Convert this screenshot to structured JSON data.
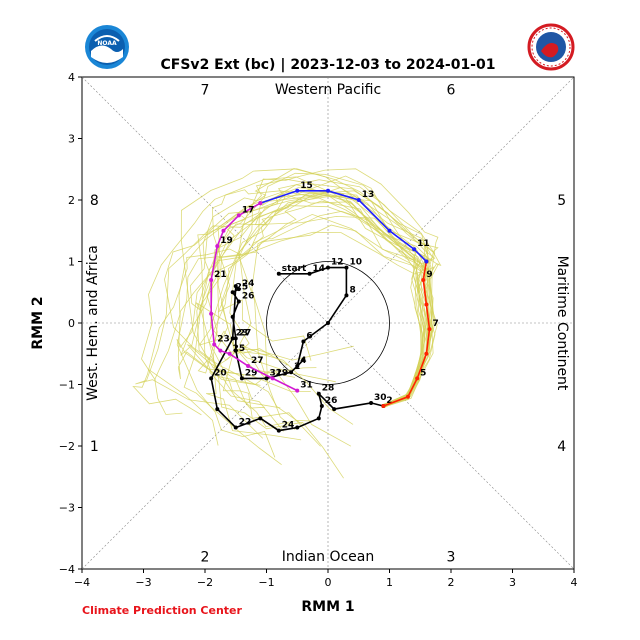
{
  "header": {
    "title": "CFSv2 Ext (bc) | 2023-12-03 to 2024-01-01",
    "left_logo": "noaa-logo",
    "right_logo": "national-weather-service-logo"
  },
  "footer": {
    "credit": "Climate Prediction Center"
  },
  "chart_data": {
    "type": "line",
    "title": "CFSv2 Ext (bc) | 2023-12-03 to 2024-01-01",
    "xlabel": "RMM 1",
    "ylabel": "RMM 2",
    "xlim": [
      -4,
      4
    ],
    "ylim": [
      -4,
      4
    ],
    "xticks": [
      -4,
      -3,
      -2,
      -1,
      0,
      1,
      2,
      3,
      4
    ],
    "yticks": [
      -4,
      -3,
      -2,
      -1,
      0,
      1,
      2,
      3,
      4
    ],
    "region_labels": {
      "top": "Western Pacific",
      "bottom": "Indian Ocean",
      "left": "West. Hem. and Africa",
      "right": "Maritime Continent"
    },
    "phase_labels": [
      {
        "phase": "1",
        "x": -3.8,
        "y": -2.0
      },
      {
        "phase": "2",
        "x": -2.0,
        "y": -3.8
      },
      {
        "phase": "3",
        "x": 2.0,
        "y": -3.8
      },
      {
        "phase": "4",
        "x": 3.8,
        "y": -2.0
      },
      {
        "phase": "5",
        "x": 3.8,
        "y": 2.0
      },
      {
        "phase": "6",
        "x": 2.0,
        "y": 3.8
      },
      {
        "phase": "7",
        "x": -2.0,
        "y": 3.8
      },
      {
        "phase": "8",
        "x": -3.8,
        "y": 2.0
      }
    ],
    "unit_circle_radius": 1,
    "colors": {
      "observed": "#000000",
      "ensemble": "#d4d25a",
      "forecast_week1": "#ff2200",
      "forecast_week2": "#1f1fff",
      "forecast_week3": "#d21ad2",
      "credit": "#e8141b"
    },
    "series": [
      {
        "role": "observed",
        "x": [
          -0.8,
          -0.3,
          0.0,
          0.3,
          0.3,
          0.0,
          -0.4,
          -0.5,
          -0.4,
          -0.6,
          -1.0,
          -1.4,
          -1.5,
          -1.5,
          -1.55,
          -1.45,
          -1.55,
          -1.45,
          -1.5,
          -1.55,
          -1.9,
          -1.8,
          -1.5,
          -1.1,
          -0.8,
          -0.5,
          -0.15,
          -0.1,
          -0.15,
          0.1,
          0.7,
          0.9
        ],
        "y": [
          0.8,
          0.8,
          0.9,
          0.9,
          0.45,
          0.0,
          -0.3,
          -0.7,
          -0.6,
          -0.8,
          -0.9,
          -0.9,
          -0.45,
          -0.25,
          0.1,
          0.35,
          0.5,
          0.55,
          0.6,
          -0.25,
          -0.9,
          -1.4,
          -1.7,
          -1.55,
          -1.75,
          -1.7,
          -1.55,
          -1.35,
          -1.15,
          -1.4,
          -1.3,
          -1.35
        ],
        "labels": [
          {
            "text": "start",
            "index": 0
          },
          {
            "text": "14",
            "index": 1
          },
          {
            "text": "12",
            "index": 2
          },
          {
            "text": "10",
            "index": 3
          },
          {
            "text": "8",
            "index": 4
          },
          {
            "text": "6",
            "index": 6
          },
          {
            "text": "4",
            "index": 7
          },
          {
            "text": "2",
            "index": 9
          },
          {
            "text": "31",
            "index": 10
          },
          {
            "text": "29",
            "index": 11
          },
          {
            "text": "27",
            "index": 13
          },
          {
            "text": "26",
            "index": 15
          },
          {
            "text": "25",
            "index": 16
          },
          {
            "text": "24",
            "index": 17
          },
          {
            "text": "23",
            "index": 19
          },
          {
            "text": "20",
            "index": 20
          },
          {
            "text": "22",
            "index": 22
          },
          {
            "text": "24",
            "index": 24
          },
          {
            "text": "26",
            "index": 27
          },
          {
            "text": "28",
            "index": 28
          },
          {
            "text": "30",
            "index": 30
          },
          {
            "text": "2",
            "index": 31
          }
        ]
      },
      {
        "role": "forecast_week1",
        "x": [
          0.9,
          1.3,
          1.45,
          1.6,
          1.65,
          1.6,
          1.55,
          1.6
        ],
        "y": [
          -1.35,
          -1.2,
          -0.9,
          -0.5,
          -0.1,
          0.3,
          0.7,
          1.0
        ],
        "labels": [
          {
            "text": "5",
            "index": 2
          },
          {
            "text": "7",
            "index": 4
          },
          {
            "text": "9",
            "index": 6
          }
        ]
      },
      {
        "role": "forecast_week2",
        "x": [
          1.6,
          1.4,
          1.0,
          0.5,
          0.0,
          -0.5,
          -1.1
        ],
        "y": [
          1.0,
          1.2,
          1.5,
          2.0,
          2.15,
          2.15,
          1.95
        ],
        "labels": [
          {
            "text": "11",
            "index": 1
          },
          {
            "text": "13",
            "index": 3
          },
          {
            "text": "15",
            "index": 5
          }
        ]
      },
      {
        "role": "forecast_week3",
        "x": [
          -1.1,
          -1.45,
          -1.7,
          -1.8,
          -1.9,
          -1.9,
          -1.85,
          -1.75,
          -1.6,
          -1.3,
          -0.9,
          -0.5
        ],
        "y": [
          1.95,
          1.75,
          1.5,
          1.25,
          0.7,
          0.15,
          -0.35,
          -0.45,
          -0.5,
          -0.7,
          -0.9,
          -1.1
        ],
        "labels": [
          {
            "text": "17",
            "index": 1
          },
          {
            "text": "19",
            "index": 3
          },
          {
            "text": "21",
            "index": 4
          },
          {
            "text": "23",
            "index": 6
          },
          {
            "text": "25",
            "index": 8
          },
          {
            "text": "27",
            "index": 9
          },
          {
            "text": "29",
            "index": 10
          },
          {
            "text": "31",
            "index": 11
          }
        ]
      }
    ]
  }
}
